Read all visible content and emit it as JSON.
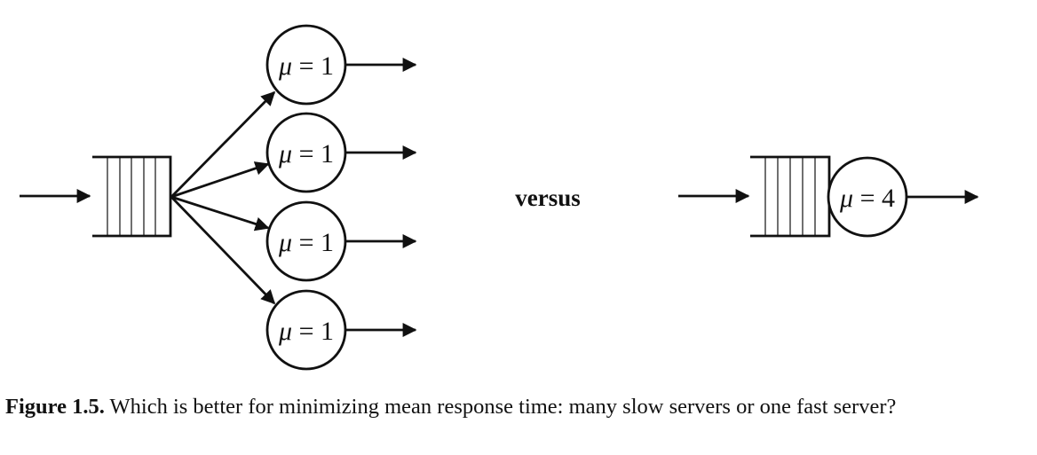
{
  "diagram": {
    "left": {
      "servers": [
        {
          "symbol": "μ",
          "equals": "=",
          "value": "1"
        },
        {
          "symbol": "μ",
          "equals": "=",
          "value": "1"
        },
        {
          "symbol": "μ",
          "equals": "=",
          "value": "1"
        },
        {
          "symbol": "μ",
          "equals": "=",
          "value": "1"
        }
      ]
    },
    "versus_label": "versus",
    "right": {
      "server": {
        "symbol": "μ",
        "equals": "=",
        "value": "4"
      }
    }
  },
  "caption": {
    "label": "Figure 1.5.",
    "text": "Which is better for minimizing mean response time: many slow servers or one fast server?"
  }
}
